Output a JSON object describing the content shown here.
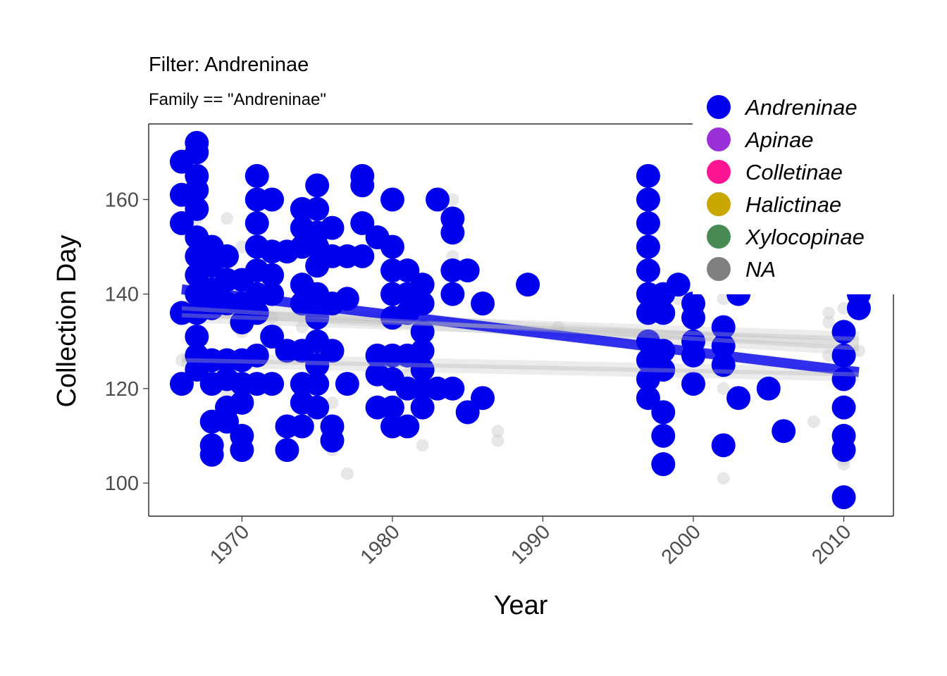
{
  "chart_data": {
    "type": "scatter",
    "title": "Filter: Andreninae",
    "subtitle": "Family == \"Andreninae\"",
    "xlabel": "Year",
    "ylabel": "Collection Day",
    "xlim": [
      1963.8,
      2013.3
    ],
    "ylim": [
      93.0,
      176.0
    ],
    "x_ticks": [
      "1970",
      "1980",
      "1990",
      "2000",
      "2010"
    ],
    "x_tick_values": [
      1970,
      1980,
      1990,
      2000,
      2010
    ],
    "y_ticks": [
      "100",
      "120",
      "140",
      "160"
    ],
    "y_tick_values": [
      100,
      120,
      140,
      160
    ],
    "grid": false,
    "legend_position": "top-right",
    "legend": [
      {
        "label": "Andreninae",
        "color": "#0000ee"
      },
      {
        "label": "Apinae",
        "color": "#9b30d9"
      },
      {
        "label": "Colletinae",
        "color": "#ff1493"
      },
      {
        "label": "Halictinae",
        "color": "#c8a800"
      },
      {
        "label": "Xylocopinae",
        "color": "#4a8a55"
      },
      {
        "label": "NA",
        "color": "#808080"
      }
    ],
    "series": [
      {
        "name": "Andreninae",
        "color": "#0000ee",
        "points": [
          [
            1966,
            168
          ],
          [
            1966,
            161
          ],
          [
            1966,
            155
          ],
          [
            1966,
            136
          ],
          [
            1966,
            121
          ],
          [
            1967,
            172
          ],
          [
            1967,
            170
          ],
          [
            1967,
            165
          ],
          [
            1967,
            162
          ],
          [
            1967,
            158
          ],
          [
            1967,
            152
          ],
          [
            1967,
            148
          ],
          [
            1967,
            144
          ],
          [
            1967,
            140
          ],
          [
            1967,
            136
          ],
          [
            1967,
            131
          ],
          [
            1967,
            127
          ],
          [
            1967,
            124
          ],
          [
            1968,
            150
          ],
          [
            1968,
            146
          ],
          [
            1968,
            141
          ],
          [
            1968,
            137
          ],
          [
            1968,
            126
          ],
          [
            1968,
            121
          ],
          [
            1968,
            113
          ],
          [
            1968,
            108
          ],
          [
            1968,
            106
          ],
          [
            1969,
            148
          ],
          [
            1969,
            143
          ],
          [
            1969,
            138
          ],
          [
            1969,
            126
          ],
          [
            1969,
            122
          ],
          [
            1969,
            116
          ],
          [
            1969,
            113
          ],
          [
            1970,
            143
          ],
          [
            1970,
            138
          ],
          [
            1970,
            134
          ],
          [
            1970,
            126
          ],
          [
            1970,
            121
          ],
          [
            1970,
            117
          ],
          [
            1970,
            110
          ],
          [
            1970,
            107
          ],
          [
            1971,
            165
          ],
          [
            1971,
            160
          ],
          [
            1971,
            155
          ],
          [
            1971,
            150
          ],
          [
            1971,
            145
          ],
          [
            1971,
            140
          ],
          [
            1971,
            136
          ],
          [
            1971,
            127
          ],
          [
            1971,
            121
          ],
          [
            1972,
            160
          ],
          [
            1972,
            149
          ],
          [
            1972,
            144
          ],
          [
            1972,
            140
          ],
          [
            1972,
            131
          ],
          [
            1972,
            121
          ],
          [
            1973,
            149
          ],
          [
            1973,
            128
          ],
          [
            1973,
            112
          ],
          [
            1973,
            107
          ],
          [
            1974,
            158
          ],
          [
            1974,
            154
          ],
          [
            1974,
            150
          ],
          [
            1974,
            142
          ],
          [
            1974,
            138
          ],
          [
            1974,
            128
          ],
          [
            1974,
            121
          ],
          [
            1974,
            117
          ],
          [
            1974,
            112
          ],
          [
            1975,
            163
          ],
          [
            1975,
            158
          ],
          [
            1975,
            153
          ],
          [
            1975,
            150
          ],
          [
            1975,
            146
          ],
          [
            1975,
            140
          ],
          [
            1975,
            135
          ],
          [
            1975,
            130
          ],
          [
            1975,
            125
          ],
          [
            1975,
            121
          ],
          [
            1975,
            116
          ],
          [
            1976,
            154
          ],
          [
            1976,
            148
          ],
          [
            1976,
            138
          ],
          [
            1976,
            128
          ],
          [
            1976,
            112
          ],
          [
            1976,
            109
          ],
          [
            1977,
            148
          ],
          [
            1977,
            139
          ],
          [
            1977,
            121
          ],
          [
            1978,
            165
          ],
          [
            1978,
            163
          ],
          [
            1978,
            155
          ],
          [
            1978,
            148
          ],
          [
            1979,
            152
          ],
          [
            1979,
            127
          ],
          [
            1979,
            123
          ],
          [
            1979,
            116
          ],
          [
            1980,
            160
          ],
          [
            1980,
            150
          ],
          [
            1980,
            145
          ],
          [
            1980,
            140
          ],
          [
            1980,
            135
          ],
          [
            1980,
            127
          ],
          [
            1980,
            122
          ],
          [
            1980,
            116
          ],
          [
            1980,
            112
          ],
          [
            1981,
            145
          ],
          [
            1981,
            140
          ],
          [
            1981,
            136
          ],
          [
            1981,
            127
          ],
          [
            1981,
            120
          ],
          [
            1981,
            112
          ],
          [
            1982,
            142
          ],
          [
            1982,
            138
          ],
          [
            1982,
            132
          ],
          [
            1982,
            128
          ],
          [
            1982,
            124
          ],
          [
            1982,
            120
          ],
          [
            1982,
            116
          ],
          [
            1983,
            160
          ],
          [
            1983,
            120
          ],
          [
            1984,
            156
          ],
          [
            1984,
            153
          ],
          [
            1984,
            145
          ],
          [
            1984,
            140
          ],
          [
            1984,
            120
          ],
          [
            1985,
            145
          ],
          [
            1985,
            115
          ],
          [
            1986,
            138
          ],
          [
            1986,
            118
          ],
          [
            1989,
            142
          ],
          [
            1997,
            165
          ],
          [
            1997,
            160
          ],
          [
            1997,
            155
          ],
          [
            1997,
            150
          ],
          [
            1997,
            145
          ],
          [
            1997,
            140
          ],
          [
            1997,
            136
          ],
          [
            1997,
            130
          ],
          [
            1997,
            126
          ],
          [
            1997,
            122
          ],
          [
            1997,
            118
          ],
          [
            1998,
            140
          ],
          [
            1998,
            136
          ],
          [
            1998,
            128
          ],
          [
            1998,
            124
          ],
          [
            1998,
            115
          ],
          [
            1998,
            110
          ],
          [
            1998,
            104
          ],
          [
            1999,
            142
          ],
          [
            2000,
            138
          ],
          [
            2000,
            135
          ],
          [
            2000,
            130
          ],
          [
            2000,
            127
          ],
          [
            2000,
            121
          ],
          [
            2002,
            133
          ],
          [
            2002,
            129
          ],
          [
            2002,
            125
          ],
          [
            2002,
            108
          ],
          [
            2003,
            140
          ],
          [
            2003,
            118
          ],
          [
            2005,
            120
          ],
          [
            2006,
            111
          ],
          [
            2010,
            132
          ],
          [
            2010,
            127
          ],
          [
            2010,
            122
          ],
          [
            2010,
            116
          ],
          [
            2010,
            110
          ],
          [
            2010,
            107
          ],
          [
            2010,
            97
          ],
          [
            2011,
            140
          ],
          [
            2011,
            137
          ]
        ]
      },
      {
        "name": "NA",
        "color": "#808080",
        "points": [
          [
            1966,
            126
          ],
          [
            1967,
            167
          ],
          [
            1967,
            156
          ],
          [
            1967,
            141
          ],
          [
            1967,
            123
          ],
          [
            1968,
            148
          ],
          [
            1969,
            156
          ],
          [
            1969,
            119
          ],
          [
            1970,
            150
          ],
          [
            1970,
            132
          ],
          [
            1970,
            109
          ],
          [
            1971,
            139
          ],
          [
            1972,
            135
          ],
          [
            1974,
            133
          ],
          [
            1975,
            127
          ],
          [
            1976,
            117
          ],
          [
            1976,
            107
          ],
          [
            1977,
            102
          ],
          [
            1978,
            154
          ],
          [
            1980,
            143
          ],
          [
            1981,
            123
          ],
          [
            1982,
            108
          ],
          [
            1984,
            160
          ],
          [
            1984,
            148
          ],
          [
            1987,
            111
          ],
          [
            1987,
            109
          ],
          [
            1991,
            133
          ],
          [
            1998,
            125
          ],
          [
            1999,
            139
          ],
          [
            2002,
            139
          ],
          [
            2002,
            120
          ],
          [
            2002,
            101
          ],
          [
            2008,
            113
          ],
          [
            2009,
            136
          ],
          [
            2009,
            134
          ],
          [
            2009,
            127
          ],
          [
            2010,
            137
          ],
          [
            2010,
            121
          ],
          [
            2010,
            105
          ],
          [
            2010,
            104
          ],
          [
            2011,
            128
          ]
        ]
      }
    ],
    "trend_lines": [
      {
        "name": "Andreninae",
        "color": "#0000ee",
        "x": [
          1966,
          2011
        ],
        "y": [
          141,
          123.5
        ],
        "band": 1.2
      },
      {
        "name": "NA",
        "color": "#b8b8b8",
        "x": [
          1966,
          2011
        ],
        "y": [
          137,
          128.5
        ],
        "band": 1.5
      },
      {
        "name": "NA",
        "color": "#b8b8b8",
        "x": [
          1966,
          2011
        ],
        "y": [
          135.5,
          130.5
        ],
        "band": 1.5
      },
      {
        "name": "NA",
        "color": "#b8b8b8",
        "x": [
          1966,
          2011
        ],
        "y": [
          126,
          123
        ],
        "band": 1.5
      }
    ]
  }
}
